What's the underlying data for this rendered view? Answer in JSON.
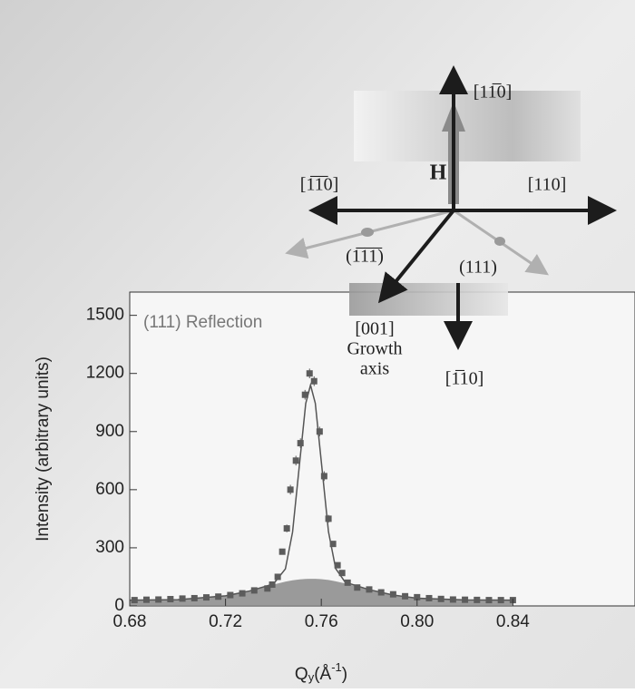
{
  "chart_data": {
    "type": "scatter",
    "annotation": "(111) Reflection",
    "x_label": [
      "Q",
      "y",
      "(Å",
      "-1",
      ")"
    ],
    "y_label": "Intensity (arbitrary units)",
    "xlim": [
      0.68,
      0.891
    ],
    "ylim": [
      0,
      1620
    ],
    "xticks": [
      {
        "value": 0.68,
        "label": "0.68"
      },
      {
        "value": 0.72,
        "label": "0.72"
      },
      {
        "value": 0.76,
        "label": "0.76"
      },
      {
        "value": 0.8,
        "label": "0.80"
      },
      {
        "value": 0.84,
        "label": "0.84"
      }
    ],
    "yticks": [
      0,
      300,
      600,
      900,
      1200,
      1500
    ],
    "series": [
      {
        "type": "area",
        "color": "#8a8a8a",
        "x": [
          0.68,
          0.7,
          0.72,
          0.73,
          0.74,
          0.745,
          0.748,
          0.751,
          0.7535,
          0.7555,
          0.7575,
          0.76,
          0.763,
          0.766,
          0.77,
          0.78,
          0.79,
          0.8,
          0.82,
          0.84
        ],
        "values": [
          30,
          32,
          52,
          77,
          110,
          125,
          132,
          137,
          139,
          140,
          140,
          138,
          134,
          127,
          116,
          84,
          56,
          40,
          31,
          30
        ]
      },
      {
        "type": "line",
        "color": "#555555",
        "x": [
          0.68,
          0.7,
          0.72,
          0.73,
          0.74,
          0.745,
          0.748,
          0.751,
          0.7535,
          0.7555,
          0.7575,
          0.76,
          0.763,
          0.766,
          0.77,
          0.78,
          0.79,
          0.8,
          0.82,
          0.84
        ],
        "values": [
          30,
          32,
          52,
          77,
          113,
          191,
          381,
          744,
          1045,
          1140,
          1046,
          745,
          383,
          193,
          122,
          84,
          56,
          40,
          31,
          30
        ]
      },
      {
        "type": "points",
        "color": "#5c5c5c",
        "x": [
          0.682,
          0.687,
          0.692,
          0.697,
          0.702,
          0.707,
          0.712,
          0.717,
          0.722,
          0.727,
          0.732,
          0.7375,
          0.7395,
          0.7418,
          0.7437,
          0.7456,
          0.7471,
          0.7494,
          0.7513,
          0.7532,
          0.7551,
          0.757,
          0.7593,
          0.7612,
          0.763,
          0.7649,
          0.7668,
          0.7687,
          0.771,
          0.775,
          0.78,
          0.785,
          0.79,
          0.795,
          0.8,
          0.805,
          0.81,
          0.815,
          0.82,
          0.825,
          0.83,
          0.835,
          0.84
        ],
        "values": [
          30,
          32,
          33,
          35,
          38,
          40,
          44,
          48,
          56,
          65,
          80,
          90,
          110,
          150,
          280,
          400,
          600,
          750,
          840,
          1090,
          1200,
          1160,
          900,
          670,
          450,
          320,
          210,
          170,
          120,
          95,
          85,
          70,
          60,
          50,
          45,
          40,
          36,
          33,
          32,
          31,
          30,
          30,
          30
        ],
        "errors": [
          8,
          8,
          8,
          8,
          8,
          8,
          8,
          8,
          8,
          8,
          10,
          10,
          10,
          10,
          15,
          20,
          25,
          25,
          25,
          25,
          25,
          25,
          25,
          25,
          20,
          15,
          12,
          10,
          10,
          10,
          10,
          8,
          8,
          8,
          8,
          8,
          8,
          8,
          8,
          8,
          8,
          8,
          8
        ]
      }
    ]
  },
  "diagram": {
    "labels": [
      "[11̅0]",
      "[1̅1̅0]",
      "[110]",
      "H",
      "(1̅1̅1̅)",
      "(111)",
      "[001]",
      "Growth",
      "axis",
      "[1̅10]"
    ]
  }
}
